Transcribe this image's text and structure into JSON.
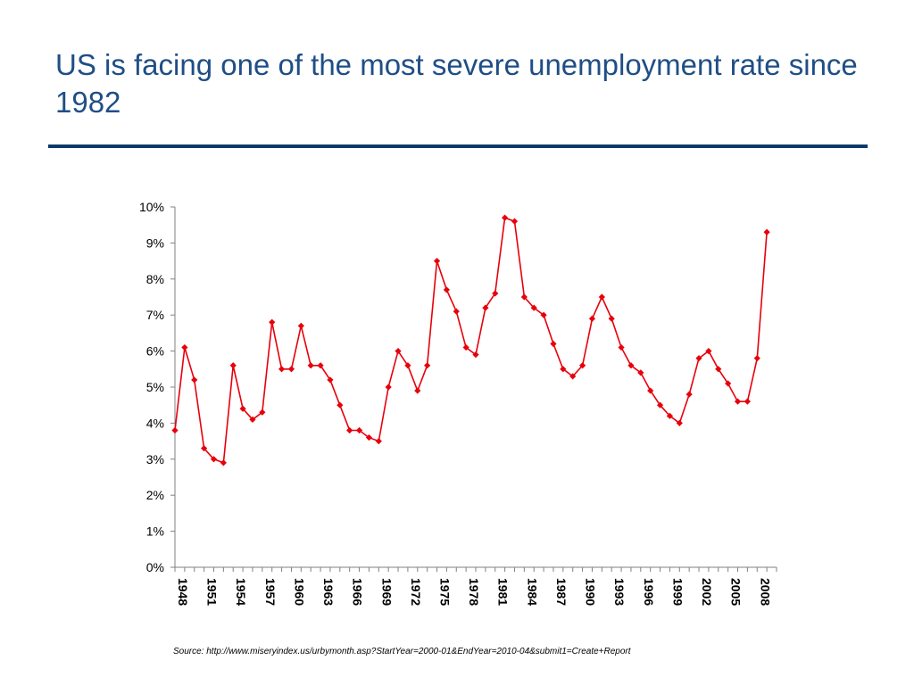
{
  "slide": {
    "title": "US is facing one of the most severe unemployment rate since 1982",
    "source": "Source: http://www.miseryindex.us/urbymonth.asp?StartYear=2000-01&EndYear=2010-04&submit1=Create+Report",
    "rule_color": "#0b3a6b",
    "title_color": "#1f4e86"
  },
  "chart_data": {
    "type": "line",
    "x": [
      1948,
      1949,
      1950,
      1951,
      1952,
      1953,
      1954,
      1955,
      1956,
      1957,
      1958,
      1959,
      1960,
      1961,
      1962,
      1963,
      1964,
      1965,
      1966,
      1967,
      1968,
      1969,
      1970,
      1971,
      1972,
      1973,
      1974,
      1975,
      1976,
      1977,
      1978,
      1979,
      1980,
      1981,
      1982,
      1983,
      1984,
      1985,
      1986,
      1987,
      1988,
      1989,
      1990,
      1991,
      1992,
      1993,
      1994,
      1995,
      1996,
      1997,
      1998,
      1999,
      2000,
      2001,
      2002,
      2003,
      2004,
      2005,
      2006,
      2007,
      2008,
      2009
    ],
    "series": [
      {
        "name": "",
        "color": "#e8000b",
        "marker": "diamond",
        "values": [
          3.8,
          6.1,
          5.2,
          3.3,
          3.0,
          2.9,
          5.6,
          4.4,
          4.1,
          4.3,
          6.8,
          5.5,
          5.5,
          6.7,
          5.6,
          5.6,
          5.2,
          4.5,
          3.8,
          3.8,
          3.6,
          3.5,
          5.0,
          6.0,
          5.6,
          4.9,
          5.6,
          8.5,
          7.7,
          7.1,
          6.1,
          5.9,
          7.2,
          7.6,
          9.7,
          9.6,
          7.5,
          7.2,
          7.0,
          6.2,
          5.5,
          5.3,
          5.6,
          6.9,
          7.5,
          6.9,
          6.1,
          5.6,
          5.4,
          4.9,
          4.5,
          4.2,
          4.0,
          4.8,
          5.8,
          6.0,
          5.5,
          5.1,
          4.6,
          4.6,
          5.8,
          9.3
        ]
      }
    ],
    "x_tick_labels": [
      "1948",
      "1951",
      "1954",
      "1957",
      "1960",
      "1963",
      "1966",
      "1969",
      "1972",
      "1975",
      "1978",
      "1981",
      "1984",
      "1987",
      "1990",
      "1993",
      "1996",
      "1999",
      "2002",
      "2005",
      "2008"
    ],
    "y_tick_labels": [
      "0%",
      "1%",
      "2%",
      "3%",
      "4%",
      "5%",
      "6%",
      "7%",
      "8%",
      "9%",
      "10%"
    ],
    "ylim": [
      0,
      10
    ],
    "xlim": [
      1948,
      2010
    ],
    "grid": false,
    "title": "",
    "xlabel": "",
    "ylabel": ""
  }
}
